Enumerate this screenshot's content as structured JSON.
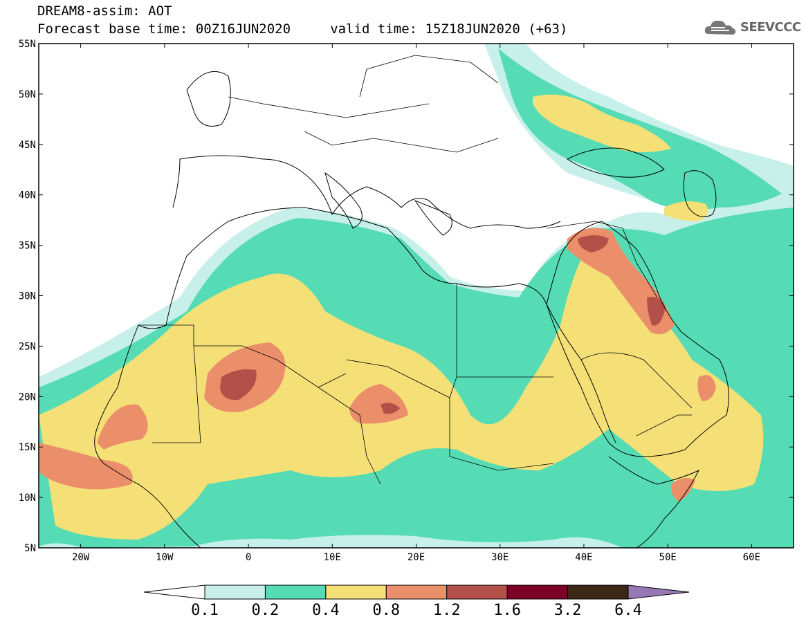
{
  "header": {
    "title_line1": "DREAM8-assim: AOT",
    "title_line2": "Forecast base time: 00Z16JUN2020     valid time: 15Z18JUN2020 (+63)",
    "logo_text": "SEEVCCC",
    "logo_icon": "cloud-icon"
  },
  "map": {
    "variable": "AOT",
    "lon_range": [
      -25,
      65
    ],
    "lat_range": [
      5,
      55
    ],
    "lon_ticks": [
      "20W",
      "10W",
      "0",
      "10E",
      "20E",
      "30E",
      "40E",
      "50E",
      "60E"
    ],
    "lat_ticks": [
      "5N",
      "10N",
      "15N",
      "20N",
      "25N",
      "30N",
      "35N",
      "40N",
      "45N",
      "50N",
      "55N"
    ]
  },
  "colorbar": {
    "labels": [
      "0.1",
      "0.2",
      "0.4",
      "0.8",
      "1.2",
      "1.6",
      "3.2",
      "6.4"
    ],
    "colors": [
      "#ffffff",
      "#c8f0ea",
      "#56dcb4",
      "#f5e078",
      "#ea8f6a",
      "#b4504a",
      "#7c0028",
      "#3c2814",
      "#9678b4"
    ]
  }
}
